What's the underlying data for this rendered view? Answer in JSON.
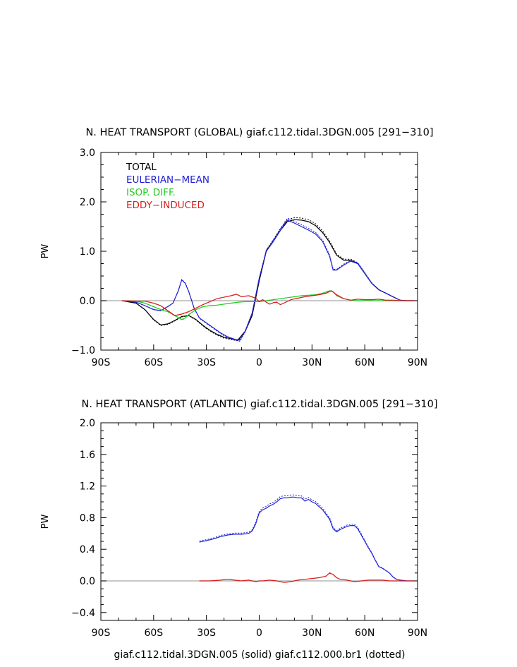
{
  "footer": "giaf.c112.tidal.3DGN.005 (solid) giaf.c112.000.br1 (dotted)",
  "chart_data": [
    {
      "type": "line",
      "title": "N. HEAT TRANSPORT (GLOBAL) giaf.c112.tidal.3DGN.005 [291−310]",
      "ylabel": "PW",
      "xlim": [
        -90,
        90
      ],
      "ylim": [
        -1.0,
        3.0
      ],
      "xticks": [
        -90,
        -60,
        -30,
        0,
        30,
        60,
        90
      ],
      "xtick_labels": [
        "90S",
        "60S",
        "30S",
        "0",
        "30N",
        "60N",
        "90N"
      ],
      "yticks": [
        -1.0,
        0.0,
        1.0,
        2.0,
        3.0
      ],
      "ytick_labels": [
        "−1.0",
        "0.0",
        "1.0",
        "2.0",
        "3.0"
      ],
      "legend": {
        "placement": "top-left",
        "entries": [
          {
            "label": "TOTAL",
            "color": "#000000"
          },
          {
            "label": "EULERIAN−MEAN",
            "color": "#1f1fd6"
          },
          {
            "label": "ISOP. DIFF.",
            "color": "#22cc22"
          },
          {
            "label": "EDDY−INDUCED",
            "color": "#d61f1f"
          }
        ]
      },
      "series": [
        {
          "name": "TOTAL",
          "color": "#000000",
          "x": [
            -78,
            -70,
            -65,
            -60,
            -56,
            -52,
            -48,
            -44,
            -40,
            -36,
            -32,
            -28,
            -24,
            -20,
            -16,
            -12,
            -8,
            -4,
            0,
            4,
            8,
            12,
            16,
            20,
            24,
            28,
            32,
            36,
            40,
            44,
            48,
            52,
            56,
            60,
            64,
            68,
            72,
            76,
            80,
            84,
            88
          ],
          "y": [
            0,
            -0.05,
            -0.18,
            -0.38,
            -0.49,
            -0.47,
            -0.4,
            -0.32,
            -0.3,
            -0.38,
            -0.5,
            -0.6,
            -0.68,
            -0.74,
            -0.77,
            -0.79,
            -0.62,
            -0.3,
            0.4,
            1.0,
            1.2,
            1.42,
            1.6,
            1.64,
            1.63,
            1.6,
            1.52,
            1.38,
            1.18,
            0.92,
            0.82,
            0.82,
            0.75,
            0.55,
            0.35,
            0.22,
            0.15,
            0.08,
            0.01,
            0,
            0
          ]
        },
        {
          "name": "EULERIAN−MEAN",
          "color": "#1f1fd6",
          "x": [
            -78,
            -70,
            -65,
            -60,
            -56,
            -52,
            -49,
            -46,
            -44,
            -42,
            -40,
            -37,
            -34,
            -30,
            -26,
            -22,
            -18,
            -14,
            -11,
            -8,
            -4,
            0,
            4,
            8,
            12,
            16,
            20,
            24,
            28,
            32,
            36,
            40,
            42,
            44,
            48,
            52,
            56,
            60,
            64,
            68,
            72,
            76,
            80,
            84,
            88
          ],
          "y": [
            0,
            -0.03,
            -0.1,
            -0.18,
            -0.2,
            -0.12,
            -0.05,
            0.2,
            0.42,
            0.35,
            0.18,
            -0.15,
            -0.35,
            -0.45,
            -0.55,
            -0.65,
            -0.73,
            -0.78,
            -0.8,
            -0.62,
            -0.25,
            0.45,
            1.0,
            1.2,
            1.42,
            1.63,
            1.57,
            1.5,
            1.43,
            1.35,
            1.2,
            0.9,
            0.62,
            0.62,
            0.72,
            0.8,
            0.75,
            0.55,
            0.35,
            0.22,
            0.15,
            0.08,
            0.01,
            0,
            0
          ]
        },
        {
          "name": "ISOP. DIFF.",
          "color": "#22cc22",
          "x": [
            -78,
            -70,
            -65,
            -60,
            -56,
            -52,
            -48,
            -44,
            -42,
            -40,
            -36,
            -32,
            -28,
            -24,
            -20,
            -16,
            -12,
            -8,
            -4,
            0,
            4,
            8,
            12,
            16,
            20,
            24,
            28,
            32,
            36,
            40,
            42,
            44,
            48,
            52,
            56,
            60,
            64,
            68,
            72,
            76,
            80,
            84,
            88
          ],
          "y": [
            0,
            -0.01,
            -0.05,
            -0.12,
            -0.18,
            -0.22,
            -0.3,
            -0.38,
            -0.35,
            -0.28,
            -0.18,
            -0.12,
            -0.1,
            -0.09,
            -0.07,
            -0.05,
            -0.03,
            -0.02,
            -0.02,
            -0.02,
            0,
            0.02,
            0.04,
            0.06,
            0.08,
            0.1,
            0.11,
            0.12,
            0.15,
            0.2,
            0.18,
            0.1,
            0.04,
            0.01,
            0,
            0,
            0,
            0,
            0,
            0,
            0,
            0,
            0
          ]
        },
        {
          "name": "EDDY−INDUCED",
          "color": "#d61f1f",
          "x": [
            -78,
            -70,
            -65,
            -60,
            -56,
            -52,
            -48,
            -44,
            -40,
            -36,
            -32,
            -28,
            -24,
            -20,
            -16,
            -13,
            -10,
            -6,
            -2,
            0,
            2,
            4,
            6,
            8,
            10,
            12,
            14,
            18,
            22,
            26,
            30,
            34,
            38,
            41,
            44,
            48,
            52,
            56,
            60,
            64,
            68,
            72,
            76,
            80,
            84,
            88
          ],
          "y": [
            0,
            -0.01,
            -0.01,
            -0.05,
            -0.1,
            -0.2,
            -0.3,
            -0.27,
            -0.22,
            -0.15,
            -0.08,
            -0.02,
            0.04,
            0.07,
            0.1,
            0.13,
            0.08,
            0.1,
            0.05,
            -0.02,
            0.02,
            -0.03,
            -0.07,
            -0.04,
            -0.03,
            -0.08,
            -0.05,
            0.02,
            0.05,
            0.08,
            0.1,
            0.12,
            0.15,
            0.2,
            0.12,
            0.04,
            0.01,
            0.03,
            0.02,
            0.02,
            0.03,
            0.01,
            0.01,
            0,
            0,
            0
          ]
        }
      ]
    },
    {
      "type": "line",
      "title": "N. HEAT TRANSPORT (ATLANTIC) giaf.c112.tidal.3DGN.005 [291−310]",
      "ylabel": "PW",
      "xlim": [
        -90,
        90
      ],
      "ylim": [
        -0.5,
        2.0
      ],
      "xticks": [
        -90,
        -60,
        -30,
        0,
        30,
        60,
        90
      ],
      "xtick_labels": [
        "90S",
        "60S",
        "30S",
        "0",
        "30N",
        "60N",
        "90N"
      ],
      "yticks": [
        -0.4,
        0.0,
        0.4,
        0.8,
        1.2,
        1.6,
        2.0
      ],
      "ytick_labels": [
        "−0.4",
        "0.0",
        "0.4",
        "0.8",
        "1.2",
        "1.6",
        "2.0"
      ],
      "series": [
        {
          "name": "EULERIAN−MEAN",
          "color": "#1f1fd6",
          "x": [
            -34,
            -30,
            -26,
            -22,
            -18,
            -14,
            -10,
            -6,
            -4,
            -2,
            0,
            2,
            4,
            6,
            8,
            10,
            12,
            14,
            16,
            18,
            20,
            22,
            24,
            26,
            28,
            30,
            32,
            34,
            36,
            38,
            40,
            42,
            44,
            46,
            48,
            50,
            52,
            54,
            56,
            58,
            60,
            62,
            64,
            66,
            68,
            70,
            72,
            74,
            76,
            78,
            80,
            84,
            88
          ],
          "y": [
            0.49,
            0.51,
            0.53,
            0.56,
            0.58,
            0.59,
            0.59,
            0.6,
            0.63,
            0.72,
            0.86,
            0.9,
            0.92,
            0.95,
            0.97,
            1.0,
            1.04,
            1.05,
            1.05,
            1.06,
            1.06,
            1.05,
            1.05,
            1.01,
            1.03,
            1.0,
            0.98,
            0.94,
            0.9,
            0.84,
            0.78,
            0.66,
            0.62,
            0.65,
            0.67,
            0.69,
            0.7,
            0.7,
            0.66,
            0.58,
            0.5,
            0.42,
            0.35,
            0.26,
            0.18,
            0.16,
            0.13,
            0.1,
            0.05,
            0.02,
            0.01,
            0,
            0
          ]
        },
        {
          "name": "EDDY−INDUCED",
          "color": "#d61f1f",
          "x": [
            -34,
            -28,
            -22,
            -18,
            -14,
            -10,
            -6,
            -2,
            0,
            2,
            6,
            10,
            14,
            18,
            22,
            26,
            30,
            34,
            38,
            40,
            42,
            44,
            46,
            50,
            54,
            58,
            62,
            66,
            70,
            74,
            78,
            82,
            88
          ],
          "y": [
            0,
            0,
            0.01,
            0.02,
            0.01,
            0,
            0.01,
            -0.01,
            0,
            0,
            0.01,
            0,
            -0.02,
            -0.01,
            0.01,
            0.02,
            0.03,
            0.04,
            0.06,
            0.1,
            0.08,
            0.04,
            0.02,
            0.01,
            -0.01,
            0,
            0.01,
            0.01,
            0.01,
            0,
            0,
            0,
            0
          ]
        }
      ]
    }
  ]
}
